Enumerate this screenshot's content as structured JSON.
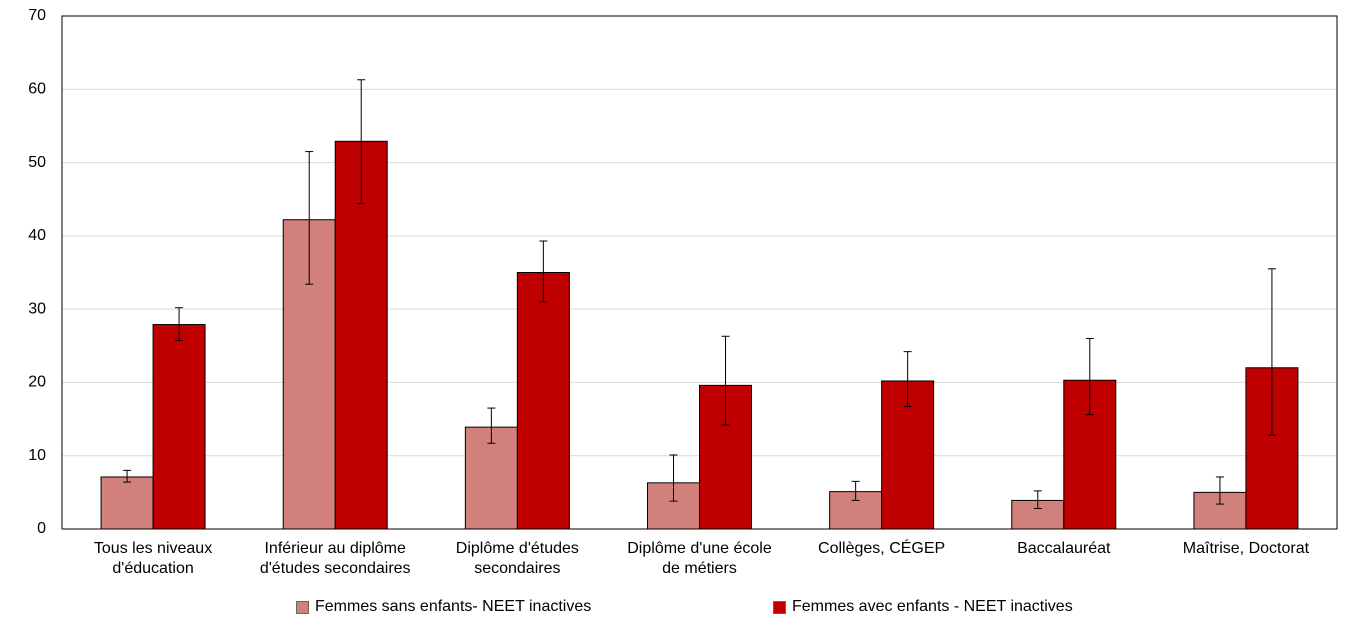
{
  "chart_data": {
    "type": "bar",
    "categories": [
      "Tous les niveaux d'éducation",
      "Inférieur au diplôme d'études secondaires",
      "Diplôme d'études secondaires",
      "Diplôme d'une école de métiers",
      "Collèges, CÉGEP",
      "Baccalauréat",
      "Maîtrise, Doctorat"
    ],
    "series": [
      {
        "name": "Femmes sans enfants- NEET inactives",
        "color": "#d2807c",
        "values": [
          7.1,
          42.2,
          13.9,
          6.3,
          5.1,
          3.9,
          5.0
        ],
        "ci_low": [
          6.4,
          33.4,
          11.7,
          3.8,
          3.9,
          2.8,
          3.4
        ],
        "ci_high": [
          8.0,
          51.5,
          16.5,
          10.1,
          6.5,
          5.2,
          7.1
        ]
      },
      {
        "name": "Femmes avec enfants - NEET inactives",
        "color": "#c00000",
        "values": [
          27.9,
          52.9,
          35.0,
          19.6,
          20.2,
          20.3,
          22.0
        ],
        "ci_low": [
          25.7,
          44.4,
          31.0,
          14.2,
          16.7,
          15.6,
          12.8
        ],
        "ci_high": [
          30.2,
          61.3,
          39.3,
          26.3,
          24.2,
          26.0,
          35.5
        ]
      }
    ],
    "ylim": [
      0,
      70
    ],
    "yticks": [
      0,
      10,
      20,
      30,
      40,
      50,
      60,
      70
    ],
    "grid": true,
    "legend": "bottom"
  }
}
